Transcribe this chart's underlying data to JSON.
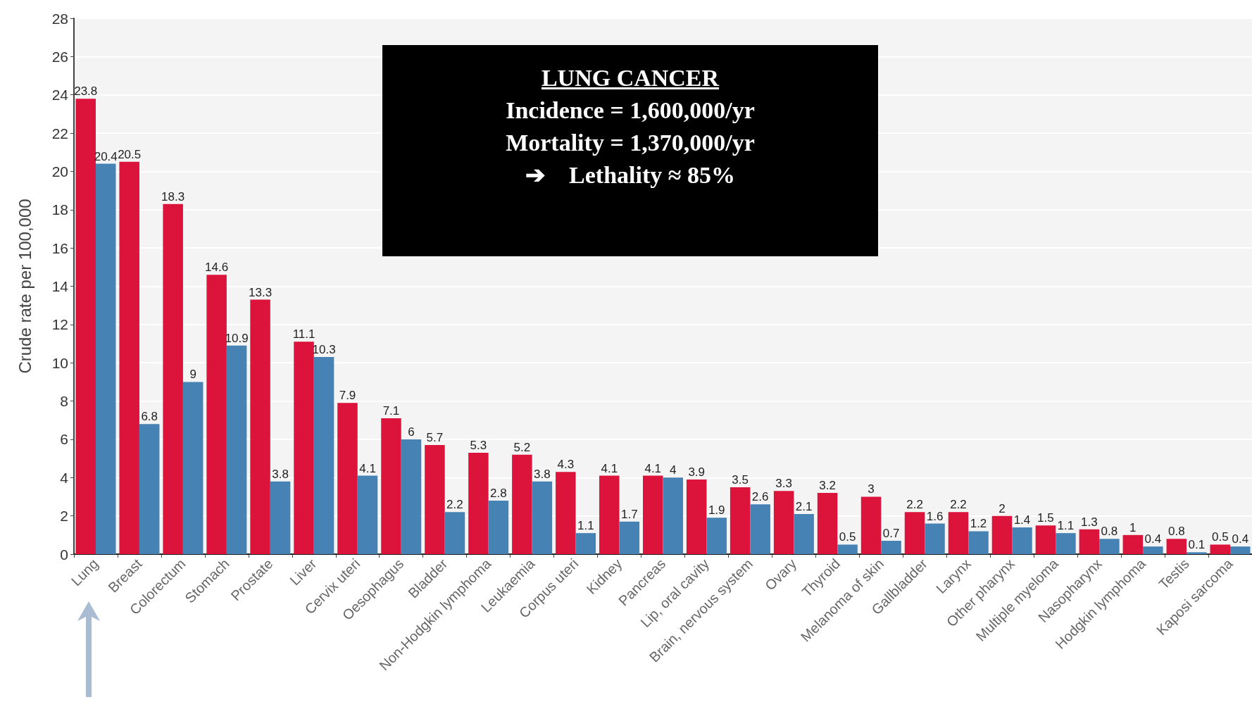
{
  "chart_data": {
    "type": "bar",
    "ylabel": "Crude rate per 100,000",
    "categories": [
      "Lung",
      "Breast",
      "Colorectum",
      "Stomach",
      "Prostate",
      "Liver",
      "Cervix uteri",
      "Oesophagus",
      "Bladder",
      "Non-Hodgkin lymphoma",
      "Leukaemia",
      "Corpus uteri",
      "Kidney",
      "Pancreas",
      "Lip, oral cavity",
      "Brain, nervous system",
      "Ovary",
      "Thyroid",
      "Melanoma of skin",
      "Gallbladder",
      "Larynx",
      "Other pharynx",
      "Multiple myeloma",
      "Nasopharynx",
      "Hodgkin lymphoma",
      "Testis",
      "Kaposi sarcoma"
    ],
    "series": [
      {
        "color": "#dc143c",
        "values": [
          23.8,
          20.5,
          18.3,
          14.6,
          13.3,
          11.1,
          7.9,
          7.1,
          5.7,
          5.3,
          5.2,
          4.3,
          4.1,
          4.1,
          3.9,
          3.5,
          3.3,
          3.2,
          3,
          2.2,
          2.2,
          2,
          1.5,
          1.3,
          1,
          0.8,
          0.5
        ]
      },
      {
        "color": "#4682b4",
        "values": [
          20.4,
          6.8,
          9,
          10.9,
          3.8,
          10.3,
          4.1,
          6,
          2.2,
          2.8,
          3.8,
          1.1,
          1.7,
          4,
          1.9,
          2.6,
          2.1,
          0.5,
          0.7,
          1.6,
          1.2,
          1.4,
          1.1,
          0.8,
          0.4,
          0.1,
          0.4
        ]
      }
    ],
    "ylim": [
      0,
      28
    ],
    "yticks": [
      0,
      2,
      4,
      6,
      8,
      10,
      12,
      14,
      16,
      18,
      20,
      22,
      24,
      26,
      28
    ],
    "grid": "y",
    "data_labels": true,
    "annotations": [
      "LUNG CANCER",
      "Incidence = 1,600,000/yr",
      "Mortality = 1,370,000/yr",
      "➔    Lethality ≈ 85%"
    ]
  }
}
